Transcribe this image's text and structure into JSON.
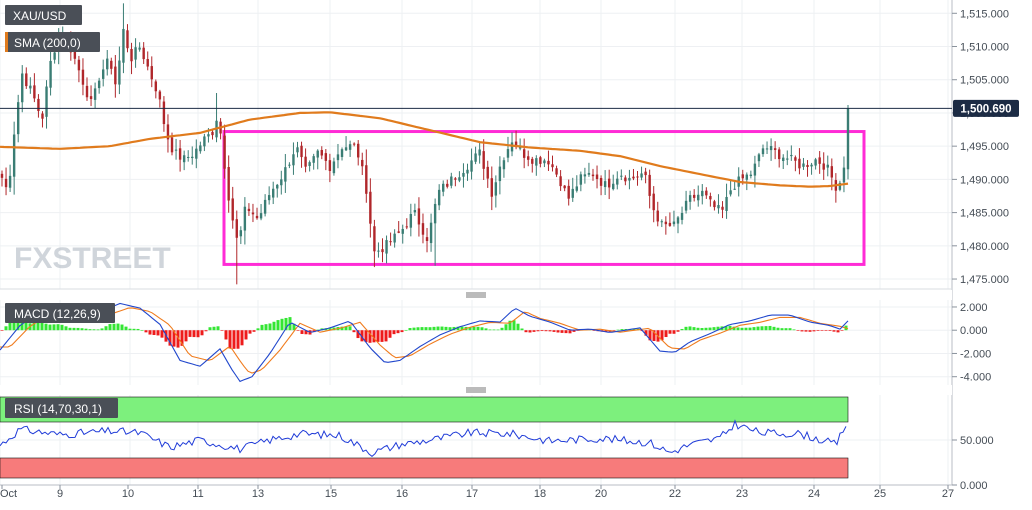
{
  "chart_data": {
    "type": "candlestick",
    "symbol": "XAU/USD",
    "indicators": {
      "sma_label": "SMA (200,0)",
      "macd_label": "MACD (12,26,9)",
      "rsi_label": "RSI (14,70,30,1)"
    },
    "last_price_label": "1,500.690",
    "last_price": 1500.69,
    "price_axis": {
      "ylim": [
        1473.5,
        1517
      ],
      "ticks": [
        1475,
        1480,
        1485,
        1490,
        1495,
        1500,
        1505,
        1510,
        1515
      ],
      "tick_labels": [
        "1,475.000",
        "1,480.000",
        "1,485.000",
        "1,490.000",
        "1,495.000",
        "1,500.000",
        "1,505.000",
        "1,510.000",
        "1,515.000"
      ]
    },
    "macd_axis": {
      "ylim": [
        -4.8,
        2.6
      ],
      "ticks": [
        2,
        0,
        -2,
        -4
      ],
      "tick_labels": [
        "2.000",
        "0.000",
        "-2.000",
        "-4.000"
      ]
    },
    "rsi_axis": {
      "ylim": [
        0,
        100
      ],
      "ticks": [
        50,
        0
      ],
      "tick_labels": [
        "50.000",
        "0.000"
      ],
      "overbought": 70,
      "oversold": 30
    },
    "x_axis": {
      "tick_labels": [
        "Oct",
        "9",
        "10",
        "11",
        "13",
        "15",
        "16",
        "17",
        "18",
        "20",
        "22",
        "23",
        "24",
        "25",
        "27"
      ]
    },
    "range_box": {
      "low": 1477.2,
      "high": 1497.2
    },
    "colors": {
      "up": "#3a7d74",
      "down": "#b0262a",
      "sma": "#e07b1d",
      "box": "#ff2bd6",
      "macd": "#2147cc",
      "signal": "#f07c1e",
      "hist_up": "#33e633",
      "hist_down": "#ee1b1b",
      "rsi": "#1f3bd8",
      "rsi_overbought": "#7df07d",
      "rsi_oversold": "#f77b7b",
      "last_price_tag": "#1c2b44"
    },
    "watermark": "FXSTREET"
  }
}
